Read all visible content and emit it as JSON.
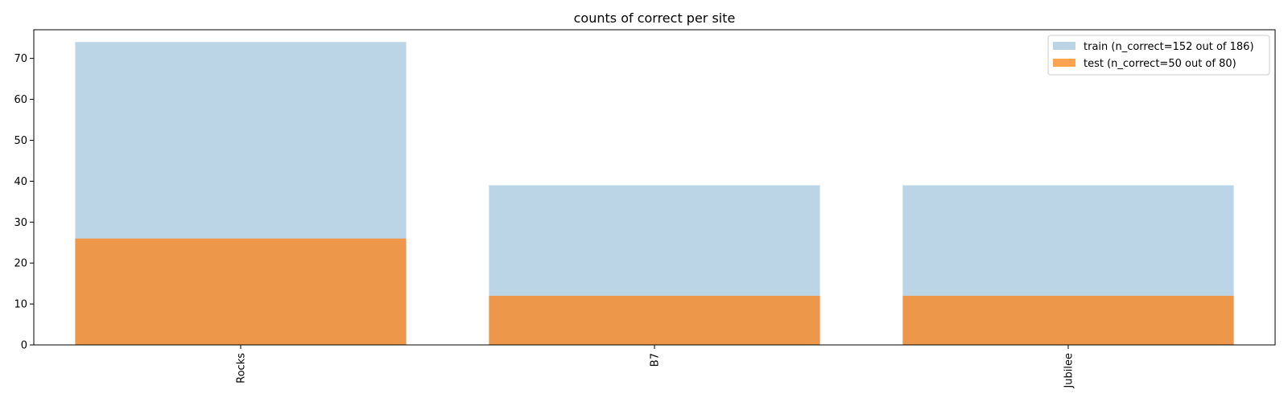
{
  "chart_data": {
    "type": "bar",
    "title": "counts of correct per site",
    "xlabel": "",
    "ylabel": "",
    "categories": [
      "Rocks",
      "B7",
      "Jubilee"
    ],
    "ylim": [
      0,
      77
    ],
    "yticks": [
      0,
      10,
      20,
      30,
      40,
      50,
      60,
      70
    ],
    "series": [
      {
        "name": "train (n_correct=152 out of 186)",
        "values": [
          74,
          39,
          39
        ],
        "color": "#a6c8e0",
        "opacity": 0.77
      },
      {
        "name": "test (n_correct=50 out of 80)",
        "values": [
          26,
          12,
          12
        ],
        "color": "#ff7f0e",
        "opacity": 0.72
      }
    ],
    "legend": "top-right",
    "grid": false,
    "overlaid": true
  }
}
